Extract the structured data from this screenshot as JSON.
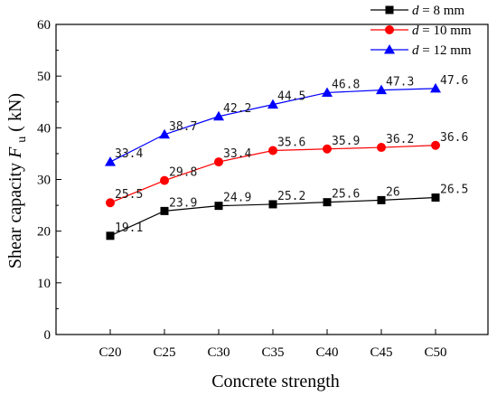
{
  "chart_data": {
    "type": "line",
    "xlabel": "Concrete strength",
    "ylabel_prefix": "Shear capacity",
    "ylabel_var": "F",
    "ylabel_sub": "u",
    "ylabel_unit": "( kN)",
    "categories": [
      "C20",
      "C25",
      "C30",
      "C35",
      "C40",
      "C45",
      "C50"
    ],
    "ylim": [
      0,
      60
    ],
    "yticks": [
      0,
      10,
      20,
      30,
      40,
      50,
      60
    ],
    "legend_position": "top-right",
    "series": [
      {
        "name": "d = 8 mm",
        "legend_var": "d",
        "legend_rest": " = 8 mm",
        "color": "#000000",
        "marker": "square",
        "values": [
          19.1,
          23.9,
          24.9,
          25.2,
          25.6,
          26,
          26.5
        ],
        "labels": [
          "19.1",
          "23.9",
          "24.9",
          "25.2",
          "25.6",
          "26",
          "26.5"
        ]
      },
      {
        "name": "d = 10 mm",
        "legend_var": "d",
        "legend_rest": " = 10 mm",
        "color": "#ff0000",
        "marker": "circle",
        "values": [
          25.5,
          29.8,
          33.4,
          35.6,
          35.9,
          36.2,
          36.6
        ],
        "labels": [
          "25.5",
          "29.8",
          "33.4",
          "35.6",
          "35.9",
          "36.2",
          "36.6"
        ]
      },
      {
        "name": "d = 12 mm",
        "legend_var": "d",
        "legend_rest": " = 12 mm",
        "color": "#0000ff",
        "marker": "triangle",
        "values": [
          33.4,
          38.7,
          42.2,
          44.5,
          46.8,
          47.3,
          47.6
        ],
        "labels": [
          "33.4",
          "38.7",
          "42.2",
          "44.5",
          "46.8",
          "47.3",
          "47.6"
        ]
      }
    ]
  }
}
